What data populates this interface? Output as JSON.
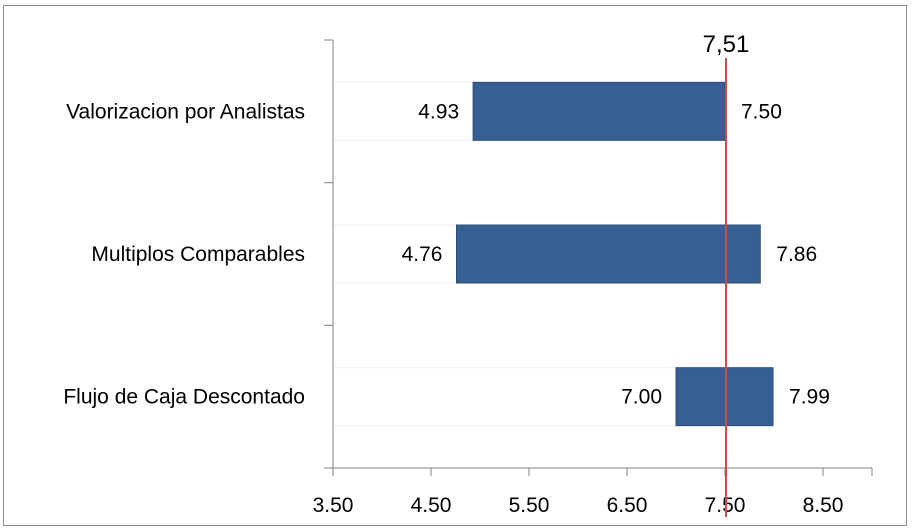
{
  "chart_data": {
    "type": "bar",
    "subtype": "floating-horizontal-range",
    "categories": [
      "Valorizacion por Analistas",
      "Multiplos Comparables",
      "Flujo de Caja Descontado"
    ],
    "ranges": [
      {
        "category": "Valorizacion por Analistas",
        "low": 4.93,
        "high": 7.5,
        "low_label": "4.93",
        "high_label": "7.50"
      },
      {
        "category": "Multiplos Comparables",
        "low": 4.76,
        "high": 7.86,
        "low_label": "4.76",
        "high_label": "7.86"
      },
      {
        "category": "Flujo de Caja Descontado",
        "low": 7.0,
        "high": 7.99,
        "low_label": "7.00",
        "high_label": "7.99"
      }
    ],
    "x_ticks": [
      "3.50",
      "4.50",
      "5.50",
      "6.50",
      "7.50",
      "8.50"
    ],
    "xlim": [
      3.5,
      9.0
    ],
    "reference_line": {
      "value": 7.51,
      "label": "7,51",
      "color": "#c0504d"
    },
    "bar_color": "#376092",
    "leading_band_color": "#ffffff",
    "legend": "none",
    "grid": false
  }
}
